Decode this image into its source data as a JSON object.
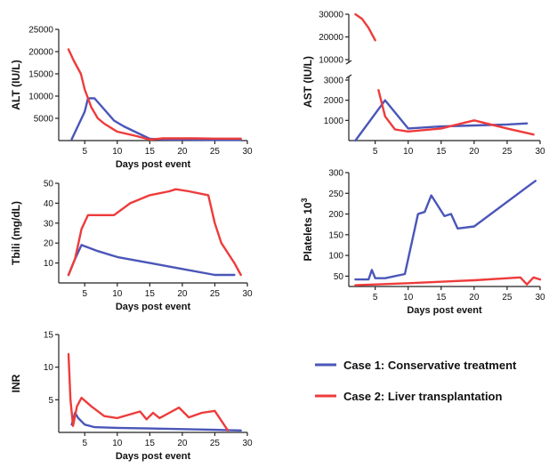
{
  "colors": {
    "case1": "#4a56b8",
    "case2": "#ee3b3b",
    "axis": "#222222"
  },
  "legend": [
    {
      "series": "case1",
      "label": "Case 1: Conservative treatment"
    },
    {
      "series": "case2",
      "label": "Case 2: Liver transplantation"
    }
  ],
  "chart_data": [
    {
      "id": "alt",
      "type": "line",
      "ylabel": "ALT (IU/L)",
      "xlabel": "Days post event",
      "xlim": [
        1,
        30
      ],
      "ylim": [
        0,
        25000
      ],
      "xticks": [
        5,
        10,
        15,
        20,
        25,
        30
      ],
      "yticks": [
        5000,
        10000,
        15000,
        20000,
        25000
      ],
      "series": [
        {
          "key": "case1",
          "x": [
            3,
            5,
            5.5,
            6.5,
            8,
            9.5,
            11,
            13,
            15,
            17,
            20,
            25,
            29
          ],
          "y": [
            300,
            6500,
            9500,
            9500,
            7000,
            4500,
            3200,
            1800,
            400,
            250,
            200,
            150,
            150
          ]
        },
        {
          "key": "case2",
          "x": [
            2.5,
            3.3,
            4.4,
            5,
            5.5,
            6,
            7,
            8,
            10,
            13,
            15,
            17,
            19,
            22,
            25,
            29
          ],
          "y": [
            20500,
            18000,
            15000,
            11500,
            9500,
            7500,
            5000,
            3800,
            2000,
            1000,
            200,
            500,
            500,
            500,
            450,
            450
          ]
        }
      ]
    },
    {
      "id": "ast",
      "type": "line",
      "ylabel": "AST (IU/L)",
      "xlabel": "",
      "xlim": [
        1,
        30
      ],
      "broken_axis": {
        "upper_range": [
          10000,
          30000
        ],
        "lower_range": [
          0,
          3000
        ]
      },
      "yticks_upper": [
        10000,
        20000,
        30000
      ],
      "yticks_lower": [
        1000,
        2000,
        3000
      ],
      "xticks": [
        5,
        10,
        15,
        20,
        25,
        30
      ],
      "series": [
        {
          "key": "case1",
          "x": [
            2,
            6.5,
            10,
            15,
            20,
            25,
            28
          ],
          "y": [
            0,
            2000,
            600,
            700,
            750,
            800,
            850
          ]
        },
        {
          "key": "case2",
          "x": [
            2,
            3,
            4,
            5
          ],
          "y": [
            30000,
            28000,
            24000,
            18500
          ],
          "segment": "upper"
        },
        {
          "key": "case2",
          "x": [
            5.5,
            6.5,
            8,
            10,
            15,
            20,
            25,
            29
          ],
          "y": [
            2500,
            1200,
            550,
            450,
            600,
            1000,
            600,
            300
          ],
          "segment": "lower"
        }
      ]
    },
    {
      "id": "tbili",
      "type": "line",
      "ylabel": "Tbili (mg/dL)",
      "xlabel": "Days post event",
      "xlim": [
        1,
        30
      ],
      "ylim": [
        0,
        50
      ],
      "xticks": [
        5,
        10,
        15,
        20,
        25,
        30
      ],
      "yticks": [
        10,
        20,
        30,
        40,
        50
      ],
      "series": [
        {
          "key": "case1",
          "x": [
            2.5,
            3.5,
            4.5,
            7,
            10,
            15,
            20,
            25,
            28
          ],
          "y": [
            4,
            12,
            19,
            16,
            13,
            10,
            7,
            4,
            4
          ]
        },
        {
          "key": "case2",
          "x": [
            2.5,
            3.5,
            4.5,
            5.5,
            7,
            9.5,
            12,
            15,
            18,
            19,
            21,
            24,
            25,
            26,
            28,
            29
          ],
          "y": [
            4,
            12,
            27,
            34,
            34,
            34,
            40,
            44,
            46,
            47,
            46,
            44,
            30,
            20,
            10,
            4
          ]
        }
      ]
    },
    {
      "id": "platelets",
      "type": "line",
      "ylabel": "Platelets 10",
      "ylabel_sup": "3",
      "xlabel": "Days post event",
      "xlim": [
        1,
        30
      ],
      "ylim": [
        25,
        300
      ],
      "xticks": [
        5,
        10,
        15,
        20,
        25,
        30
      ],
      "yticks": [
        50,
        100,
        150,
        200,
        250,
        300
      ],
      "series": [
        {
          "key": "case1",
          "x": [
            2,
            4,
            4.5,
            5,
            6.5,
            9.5,
            11.5,
            12.5,
            13.5,
            15.5,
            16.5,
            17.5,
            20,
            28,
            29.3
          ],
          "y": [
            42,
            42,
            65,
            45,
            45,
            55,
            200,
            205,
            245,
            195,
            200,
            165,
            170,
            265,
            280
          ]
        },
        {
          "key": "case2",
          "x": [
            2,
            10,
            20,
            27,
            28,
            29,
            30
          ],
          "y": [
            28,
            33,
            40,
            47,
            30,
            47,
            42
          ]
        }
      ]
    },
    {
      "id": "inr",
      "type": "line",
      "ylabel": "INR",
      "xlabel": "Days post event",
      "xlim": [
        1,
        30
      ],
      "ylim": [
        0,
        15
      ],
      "xticks": [
        5,
        10,
        15,
        20,
        25,
        30
      ],
      "yticks": [
        5,
        10,
        15
      ],
      "series": [
        {
          "key": "case1",
          "x": [
            3,
            3.5,
            4,
            5,
            6.5,
            10,
            15,
            20,
            25,
            29
          ],
          "y": [
            1.2,
            3,
            2.2,
            1.2,
            0.8,
            0.7,
            0.6,
            0.5,
            0.4,
            0.3
          ]
        },
        {
          "key": "case2",
          "x": [
            2.5,
            2.8,
            3.2,
            3.8,
            4.5,
            6,
            8,
            10,
            13.5,
            14.5,
            15.5,
            16.5,
            18,
            19.5,
            21,
            23,
            25,
            27
          ],
          "y": [
            12,
            5,
            1,
            4,
            5.3,
            4,
            2.5,
            2.2,
            3.2,
            2,
            3,
            2.2,
            3,
            3.8,
            2.3,
            3,
            3.3,
            0.3
          ]
        }
      ]
    }
  ]
}
